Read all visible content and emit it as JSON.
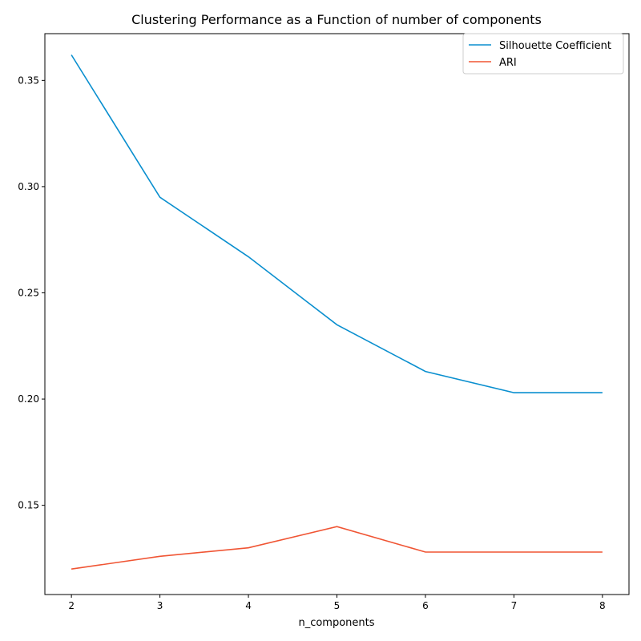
{
  "chart_data": {
    "type": "line",
    "title": "Clustering Performance as a Function of number of components",
    "xlabel": "n_components",
    "ylabel": "",
    "x": [
      2,
      3,
      4,
      5,
      6,
      7,
      8
    ],
    "xticks": [
      "2",
      "3",
      "4",
      "5",
      "6",
      "7",
      "8"
    ],
    "yticks": [
      "0.15",
      "0.20",
      "0.25",
      "0.30",
      "0.35"
    ],
    "ytick_values": [
      0.15,
      0.2,
      0.25,
      0.3,
      0.35
    ],
    "xlim": [
      1.7,
      8.3
    ],
    "ylim": [
      0.108,
      0.372
    ],
    "grid": false,
    "legend_position": "top-right",
    "series": [
      {
        "name": "Silhouette Coefficient",
        "color": "#0a8fcf",
        "values": [
          0.362,
          0.295,
          0.267,
          0.235,
          0.213,
          0.203,
          0.203
        ]
      },
      {
        "name": "ARI",
        "color": "#f05534",
        "values": [
          0.12,
          0.126,
          0.13,
          0.14,
          0.128,
          0.128,
          0.128
        ]
      }
    ]
  }
}
